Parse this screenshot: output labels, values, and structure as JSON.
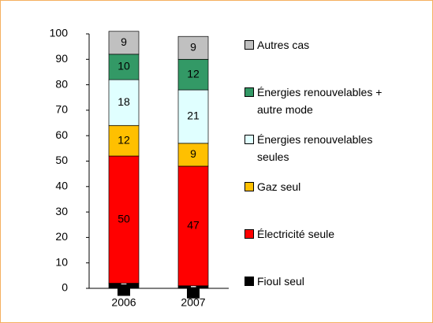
{
  "chart_data": {
    "type": "stacked_bar",
    "categories": [
      "2006",
      "2007"
    ],
    "series": [
      {
        "name": "Fioul seul",
        "color": "#000000",
        "values": [
          2,
          1
        ]
      },
      {
        "name": "Électricité seule",
        "color": "#ff0000",
        "values": [
          50,
          47
        ]
      },
      {
        "name": "Gaz seul",
        "color": "#ffc000",
        "values": [
          12,
          9
        ]
      },
      {
        "name": "Énergies renouvelables seules",
        "color": "#e0ffff",
        "values": [
          18,
          21
        ]
      },
      {
        "name": "Énergies renouvelables + autre mode",
        "color": "#339966",
        "values": [
          10,
          12
        ]
      },
      {
        "name": "Autres cas",
        "color": "#c0c0c0",
        "values": [
          9,
          9
        ]
      }
    ],
    "ylim": [
      0,
      100
    ],
    "yticks": [
      0,
      10,
      20,
      30,
      40,
      50,
      60,
      70,
      80,
      90,
      100
    ],
    "legend": "right"
  }
}
